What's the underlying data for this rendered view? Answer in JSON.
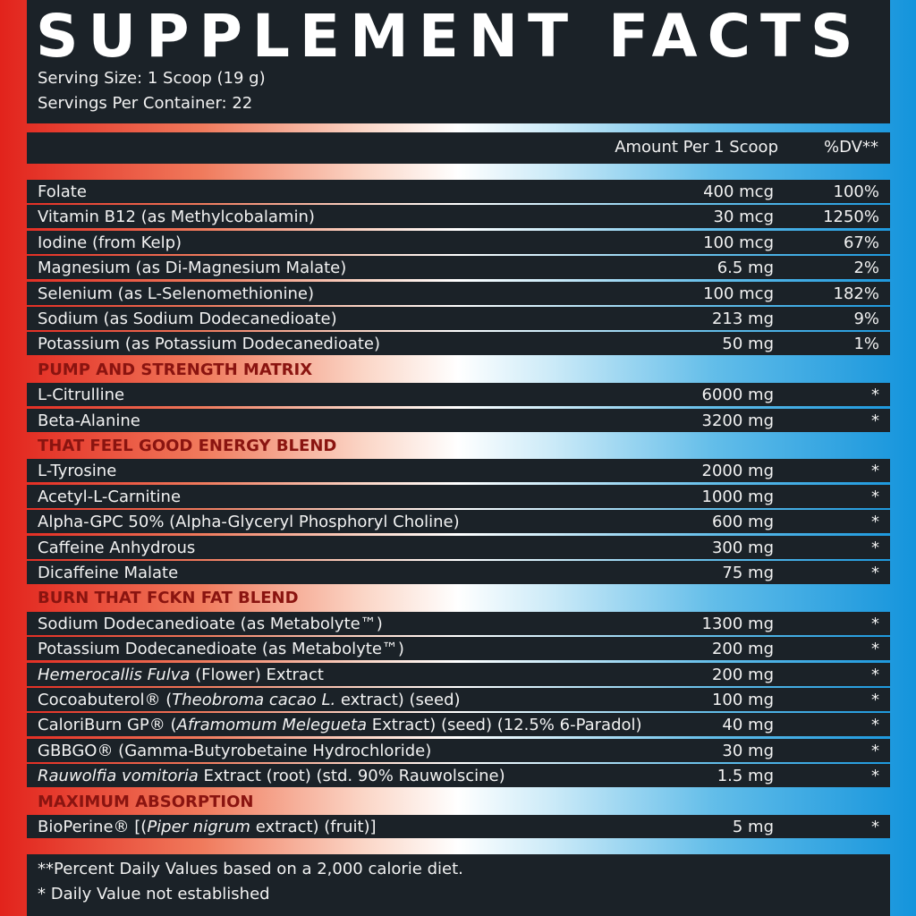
{
  "title": "SUPPLEMENT FACTS",
  "serving_size": "Serving Size: 1 Scoop (19 g)",
  "servings_per_container": "Servings Per Container: 22",
  "header": {
    "amount": "Amount Per 1 Scoop",
    "dv": "%DV**"
  },
  "sections": [
    {
      "rows": [
        {
          "name": "Folate",
          "amount": "400 mcg",
          "dv": "100%"
        },
        {
          "name": "Vitamin B12 (as Methylcobalamin)",
          "amount": "30 mcg",
          "dv": "1250%"
        },
        {
          "name": "Iodine (from Kelp)",
          "amount": "100 mcg",
          "dv": "67%"
        },
        {
          "name": "Magnesium (as Di-Magnesium Malate)",
          "amount": "6.5 mg",
          "dv": "2%"
        },
        {
          "name": "Selenium (as L-Selenomethionine)",
          "amount": "100 mcg",
          "dv": "182%"
        },
        {
          "name": "Sodium (as Sodium Dodecanedioate)",
          "amount": "213 mg",
          "dv": "9%"
        },
        {
          "name": "Potassium (as Potassium Dodecanedioate)",
          "amount": "50 mg",
          "dv": "1%"
        }
      ]
    },
    {
      "title": "PUMP AND STRENGTH MATRIX",
      "rows": [
        {
          "name": "L-Citrulline",
          "amount": "6000 mg",
          "dv": "*"
        },
        {
          "name": "Beta-Alanine",
          "amount": "3200 mg",
          "dv": "*"
        }
      ]
    },
    {
      "title": "THAT FEEL GOOD ENERGY BLEND",
      "rows": [
        {
          "name": "L-Tyrosine",
          "amount": "2000 mg",
          "dv": "*"
        },
        {
          "name": "Acetyl-L-Carnitine",
          "amount": "1000 mg",
          "dv": "*"
        },
        {
          "name": "Alpha-GPC 50% (Alpha-Glyceryl Phosphoryl Choline)",
          "amount": "600 mg",
          "dv": "*"
        },
        {
          "name": "Caffeine Anhydrous",
          "amount": "300 mg",
          "dv": "*"
        },
        {
          "name": "Dicaffeine Malate",
          "amount": "75 mg",
          "dv": "*"
        }
      ]
    },
    {
      "title": "BURN THAT FCKN FAT BLEND",
      "rows": [
        {
          "name": "Sodium Dodecanedioate (as Metabolyte™)",
          "amount": "1300 mg",
          "dv": "*"
        },
        {
          "name": "Potassium Dodecanedioate (as Metabolyte™)",
          "amount": "200 mg",
          "dv": "*"
        },
        {
          "name": [
            {
              "text": "Hemerocallis Fulva",
              "italic": true
            },
            {
              "text": " (Flower) Extract"
            }
          ],
          "amount": "200 mg",
          "dv": "*"
        },
        {
          "name": [
            {
              "text": "Cocoabuterol® ("
            },
            {
              "text": "Theobroma cacao L.",
              "italic": true
            },
            {
              "text": " extract) (seed)"
            }
          ],
          "amount": "100 mg",
          "dv": "*"
        },
        {
          "name": [
            {
              "text": "CaloriBurn GP® ("
            },
            {
              "text": "Aframomum Melegueta",
              "italic": true
            },
            {
              "text": " Extract) (seed) (12.5% 6-Paradol)"
            }
          ],
          "amount": "40 mg",
          "dv": "*"
        },
        {
          "name": "GBBGO® (Gamma-Butyrobetaine Hydrochloride)",
          "amount": "30 mg",
          "dv": "*"
        },
        {
          "name": [
            {
              "text": "Rauwolfia vomitoria",
              "italic": true
            },
            {
              "text": " Extract (root) (std. 90% Rauwolscine)"
            }
          ],
          "amount": "1.5 mg",
          "dv": "*"
        }
      ]
    },
    {
      "title": "MAXIMUM ABSORPTION",
      "rows": [
        {
          "name": [
            {
              "text": "BioPerine® [("
            },
            {
              "text": "Piper nigrum",
              "italic": true
            },
            {
              "text": " extract) (fruit)]"
            }
          ],
          "amount": "5 mg",
          "dv": "*"
        }
      ]
    }
  ],
  "footnotes": [
    "**Percent Daily Values based on a 2,000 calorie diet.",
    "* Daily Value not established"
  ]
}
